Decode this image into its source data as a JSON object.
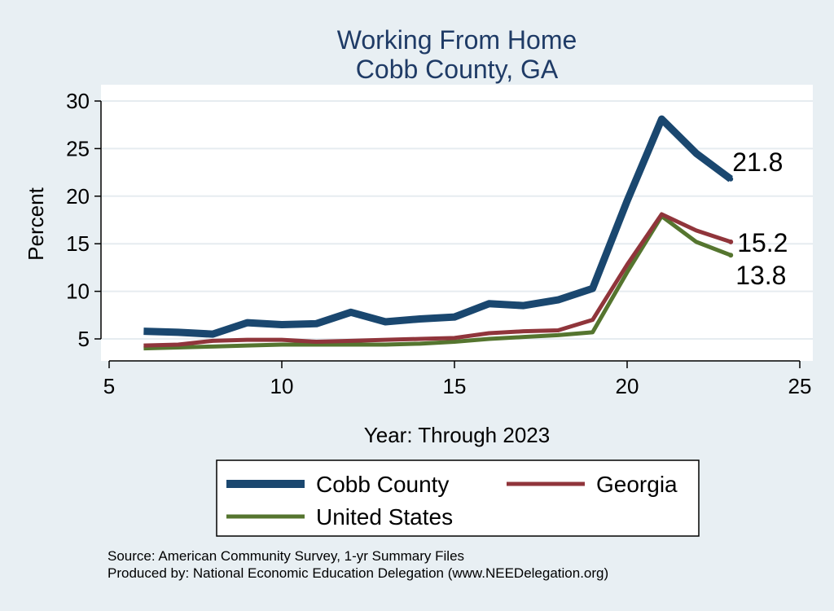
{
  "chart_data": {
    "type": "line",
    "title": "Working From Home",
    "subtitle": "Cobb County, GA",
    "xlabel": "Year: Through 2023",
    "ylabel": "Percent",
    "xlim": [
      5,
      25
    ],
    "ylim": [
      3.5,
      31
    ],
    "xticks": [
      5,
      10,
      15,
      20,
      25
    ],
    "yticks": [
      5,
      10,
      15,
      20,
      25,
      30
    ],
    "grid": true,
    "legend_position": "bottom",
    "x": [
      6,
      7,
      8,
      9,
      10,
      11,
      12,
      13,
      14,
      15,
      16,
      17,
      18,
      19,
      20,
      21,
      22,
      23
    ],
    "series": [
      {
        "name": "Cobb County",
        "color": "#1a476f",
        "values": [
          5.8,
          5.7,
          5.5,
          6.7,
          6.5,
          6.6,
          7.8,
          6.8,
          7.1,
          7.3,
          8.7,
          8.5,
          9.1,
          10.3,
          19.5,
          28.1,
          24.5,
          21.8
        ],
        "end_label": "21.8"
      },
      {
        "name": "Georgia",
        "color": "#90353b",
        "values": [
          4.3,
          4.4,
          4.8,
          4.9,
          4.9,
          4.7,
          4.8,
          4.9,
          5.0,
          5.1,
          5.6,
          5.8,
          5.9,
          7.0,
          12.8,
          18.1,
          16.4,
          15.2
        ],
        "end_label": "15.2"
      },
      {
        "name": "United States",
        "color": "#55752f",
        "values": [
          4.0,
          4.1,
          4.2,
          4.3,
          4.4,
          4.4,
          4.4,
          4.4,
          4.5,
          4.7,
          5.0,
          5.2,
          5.4,
          5.7,
          12.0,
          17.9,
          15.2,
          13.8
        ],
        "end_label": "13.8"
      }
    ]
  },
  "footnote": {
    "source": "Source: American Community Survey, 1-yr Summary Files",
    "produced": "Produced by: National Economic Education Delegation (www.NEEDelegation.org)"
  }
}
